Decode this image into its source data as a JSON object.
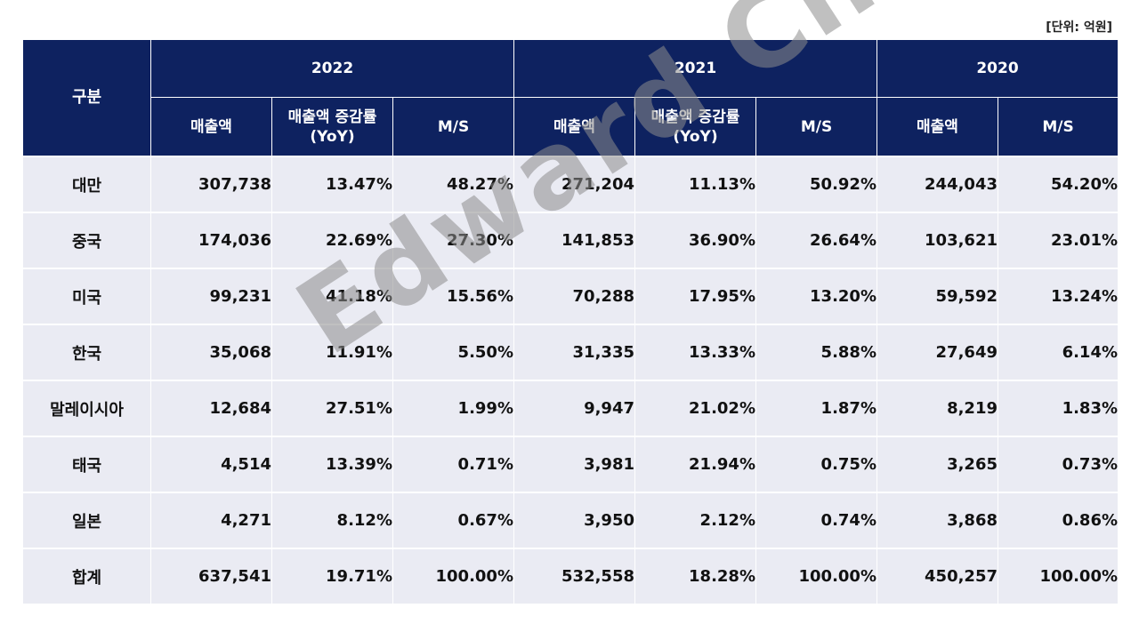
{
  "unit_note": "[단위: 억원]",
  "watermark": "Edward Choi",
  "colors": {
    "header_bg": "#0e2260",
    "header_text": "#ffffff",
    "body_bg": "#eaebf3"
  },
  "chart_data": {
    "type": "table",
    "row_header_label": "구분",
    "years": [
      {
        "label": "2022",
        "columns": [
          "매출액",
          "매출액 증감률\n(YoY)",
          "M/S"
        ]
      },
      {
        "label": "2021",
        "columns": [
          "매출액",
          "매출액 증감률\n(YoY)",
          "M/S"
        ]
      },
      {
        "label": "2020",
        "columns": [
          "매출액",
          "M/S"
        ]
      }
    ],
    "rows": [
      {
        "label": "대만",
        "cells": [
          "307,738",
          "13.47%",
          "48.27%",
          "271,204",
          "11.13%",
          "50.92%",
          "244,043",
          "54.20%"
        ]
      },
      {
        "label": "중국",
        "cells": [
          "174,036",
          "22.69%",
          "27.30%",
          "141,853",
          "36.90%",
          "26.64%",
          "103,621",
          "23.01%"
        ]
      },
      {
        "label": "미국",
        "cells": [
          "99,231",
          "41.18%",
          "15.56%",
          "70,288",
          "17.95%",
          "13.20%",
          "59,592",
          "13.24%"
        ]
      },
      {
        "label": "한국",
        "cells": [
          "35,068",
          "11.91%",
          "5.50%",
          "31,335",
          "13.33%",
          "5.88%",
          "27,649",
          "6.14%"
        ]
      },
      {
        "label": "말레이시아",
        "cells": [
          "12,684",
          "27.51%",
          "1.99%",
          "9,947",
          "21.02%",
          "1.87%",
          "8,219",
          "1.83%"
        ]
      },
      {
        "label": "태국",
        "cells": [
          "4,514",
          "13.39%",
          "0.71%",
          "3,981",
          "21.94%",
          "0.75%",
          "3,265",
          "0.73%"
        ]
      },
      {
        "label": "일본",
        "cells": [
          "4,271",
          "8.12%",
          "0.67%",
          "3,950",
          "2.12%",
          "0.74%",
          "3,868",
          "0.86%"
        ]
      },
      {
        "label": "합계",
        "cells": [
          "637,541",
          "19.71%",
          "100.00%",
          "532,558",
          "18.28%",
          "100.00%",
          "450,257",
          "100.00%"
        ]
      }
    ]
  }
}
